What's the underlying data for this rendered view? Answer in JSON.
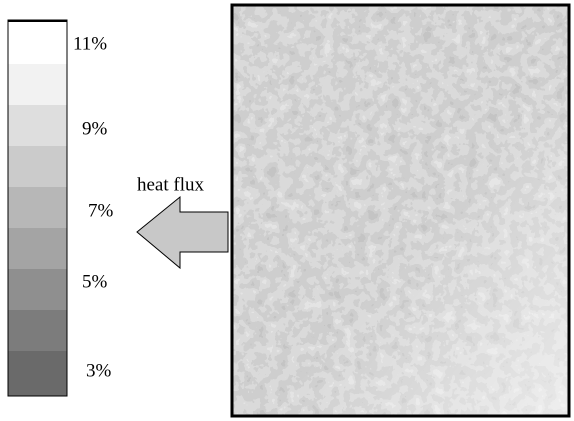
{
  "legend": {
    "labels": [
      "11%",
      "9%",
      "7%",
      "5%",
      "3%"
    ]
  },
  "arrow": {
    "label": "heat flux"
  }
}
